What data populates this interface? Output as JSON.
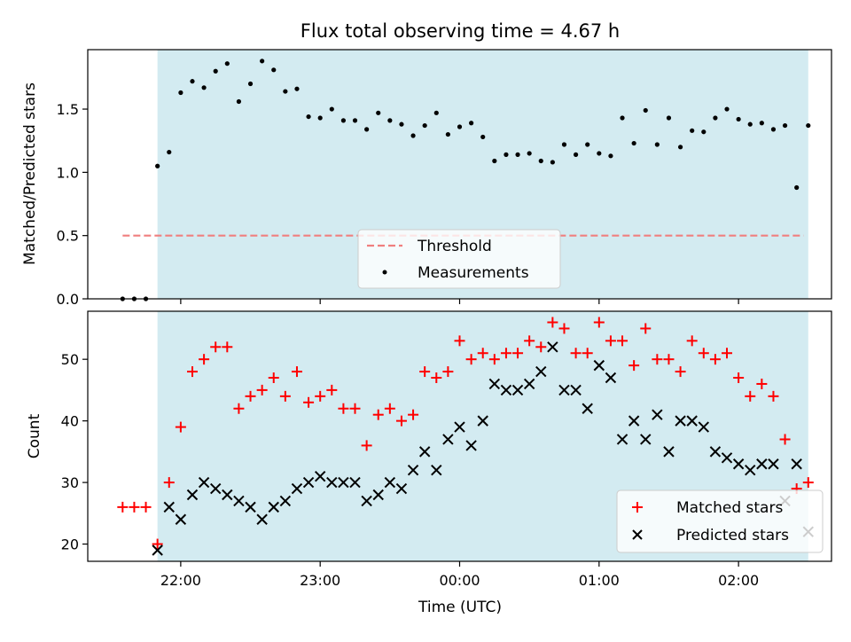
{
  "chart_data": {
    "title": "Flux total observing time = 4.67 h",
    "xlabel": "Time (UTC)",
    "x_ticks": [
      "22:00",
      "23:00",
      "00:00",
      "01:00",
      "02:00"
    ],
    "x_tick_minutes": [
      0,
      60,
      120,
      180,
      240
    ],
    "x_range_minutes": [
      -40,
      280
    ],
    "observing_window_minutes": [
      -10,
      270
    ],
    "colors": {
      "window": "#d3ebf1",
      "threshold": "#f07f7f",
      "measurements": "#000000",
      "matched": "#ff0000",
      "predicted": "#000000"
    },
    "panels": [
      {
        "type": "scatter",
        "ylabel": "Matched/Predicted stars",
        "ylim": [
          0,
          1.97
        ],
        "yticks": [
          "0.0",
          "0.5",
          "1.0",
          "1.5"
        ],
        "ytick_values": [
          0,
          0.5,
          1.0,
          1.5
        ],
        "legend_placement": "lower-center",
        "threshold": {
          "name": "Threshold",
          "value": 0.5,
          "x_range": [
            -25,
            268
          ]
        },
        "series": [
          {
            "name": "Measurements",
            "x": [
              -25,
              -20,
              -15,
              -10,
              -5,
              0,
              5,
              10,
              15,
              20,
              25,
              30,
              35,
              40,
              45,
              50,
              55,
              60,
              65,
              70,
              75,
              80,
              85,
              90,
              95,
              100,
              105,
              110,
              115,
              120,
              125,
              130,
              135,
              140,
              145,
              150,
              155,
              160,
              165,
              170,
              175,
              180,
              185,
              190,
              195,
              200,
              205,
              210,
              215,
              220,
              225,
              230,
              235,
              240,
              245,
              250,
              255,
              260,
              265,
              270
            ],
            "y": [
              0.0,
              0.0,
              0.0,
              1.05,
              1.16,
              1.63,
              1.72,
              1.67,
              1.8,
              1.86,
              1.56,
              1.7,
              1.88,
              1.81,
              1.64,
              1.66,
              1.44,
              1.43,
              1.5,
              1.41,
              1.41,
              1.34,
              1.47,
              1.41,
              1.38,
              1.29,
              1.37,
              1.47,
              1.3,
              1.36,
              1.39,
              1.28,
              1.09,
              1.14,
              1.14,
              1.15,
              1.09,
              1.08,
              1.22,
              1.14,
              1.22,
              1.15,
              1.13,
              1.43,
              1.23,
              1.49,
              1.22,
              1.43,
              1.2,
              1.33,
              1.32,
              1.43,
              1.5,
              1.42,
              1.38,
              1.39,
              1.34,
              1.37,
              0.88,
              1.37
            ]
          }
        ]
      },
      {
        "type": "scatter",
        "ylabel": "Count",
        "ylim": [
          17.2,
          57.8
        ],
        "yticks": [
          "20",
          "30",
          "40",
          "50"
        ],
        "ytick_values": [
          20,
          30,
          40,
          50
        ],
        "legend_placement": "lower-right",
        "series": [
          {
            "name": "Matched stars",
            "x": [
              -25,
              -20,
              -15,
              -10,
              -5,
              0,
              5,
              10,
              15,
              20,
              25,
              30,
              35,
              40,
              45,
              50,
              55,
              60,
              65,
              70,
              75,
              80,
              85,
              90,
              95,
              100,
              105,
              110,
              115,
              120,
              125,
              130,
              135,
              140,
              145,
              150,
              155,
              160,
              165,
              170,
              175,
              180,
              185,
              190,
              195,
              200,
              205,
              210,
              215,
              220,
              225,
              230,
              235,
              240,
              245,
              250,
              255,
              260,
              265,
              270
            ],
            "y": [
              26,
              26,
              26,
              20,
              30,
              39,
              48,
              50,
              52,
              52,
              42,
              44,
              45,
              47,
              44,
              48,
              43,
              44,
              45,
              42,
              42,
              36,
              41,
              42,
              40,
              41,
              48,
              47,
              48,
              53,
              50,
              51,
              50,
              51,
              51,
              53,
              52,
              56,
              55,
              51,
              51,
              56,
              53,
              53,
              49,
              55,
              50,
              50,
              48,
              53,
              51,
              50,
              51,
              47,
              44,
              46,
              44,
              37,
              29,
              30
            ]
          },
          {
            "name": "Predicted stars",
            "x": [
              -10,
              -5,
              0,
              5,
              10,
              15,
              20,
              25,
              30,
              35,
              40,
              45,
              50,
              55,
              60,
              65,
              70,
              75,
              80,
              85,
              90,
              95,
              100,
              105,
              110,
              115,
              120,
              125,
              130,
              135,
              140,
              145,
              150,
              155,
              160,
              165,
              170,
              175,
              180,
              185,
              190,
              195,
              200,
              205,
              210,
              215,
              220,
              225,
              230,
              235,
              240,
              245,
              250,
              255,
              260,
              265,
              270
            ],
            "y": [
              19,
              26,
              24,
              28,
              30,
              29,
              28,
              27,
              26,
              24,
              26,
              27,
              29,
              30,
              31,
              30,
              30,
              30,
              27,
              28,
              30,
              29,
              32,
              35,
              32,
              37,
              39,
              36,
              40,
              46,
              45,
              45,
              46,
              48,
              52,
              45,
              45,
              42,
              49,
              47,
              37,
              40,
              37,
              41,
              35,
              40,
              40,
              39,
              35,
              34,
              33,
              32,
              33,
              33,
              27,
              33,
              22
            ]
          }
        ]
      }
    ]
  }
}
